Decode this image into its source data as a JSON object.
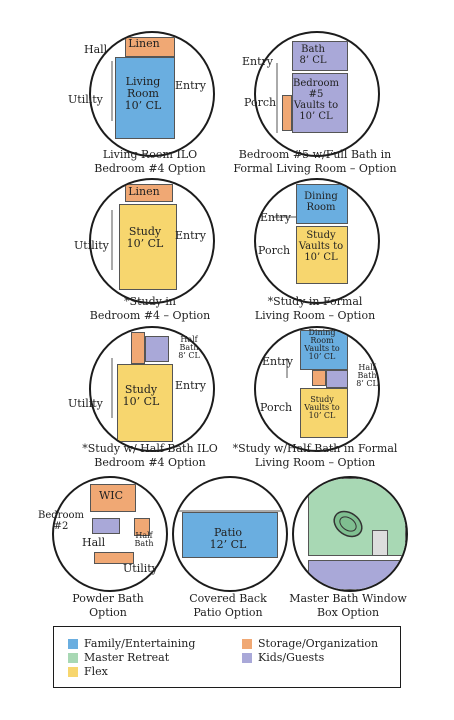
{
  "panels": [
    {
      "rooms": {
        "linen": "Linen",
        "living": "Living\nRoom\n10’ CL"
      },
      "labels": {
        "hall": "Hall",
        "entry": "Entry",
        "utility": "Utility"
      },
      "caption": [
        "Living Room ILO",
        "Bedroom #4 Option"
      ]
    },
    {
      "rooms": {
        "bath": "Bath\n8’ CL",
        "bedroom": "Bedroom\n#5\nVaults to\n10’ CL"
      },
      "labels": {
        "entry": "Entry",
        "porch": "Porch"
      },
      "caption": [
        "Bedroom #5 w/Full Bath in",
        "Formal Living Room – Option"
      ]
    },
    {
      "rooms": {
        "linen": "Linen",
        "study": "Study\n10’ CL"
      },
      "labels": {
        "utility": "Utility",
        "entry": "Entry"
      },
      "caption": [
        "*Study in",
        "Bedroom #4 – Option"
      ]
    },
    {
      "rooms": {
        "dining": "Dining\nRoom",
        "study": "Study\nVaults to\n10’ CL"
      },
      "labels": {
        "entry": "Entry",
        "porch": "Porch"
      },
      "caption": [
        "*Study in Formal",
        "Living Room – Option"
      ]
    },
    {
      "rooms": {
        "halfbath": "Half\nBath\n8’ CL",
        "study": "Study\n10’ CL"
      },
      "labels": {
        "entry": "Entry",
        "utility": "Utility"
      },
      "caption": [
        "*Study w/ Half Bath ILO",
        "Bedroom #4 Option"
      ]
    },
    {
      "rooms": {
        "dining": "Dining\nRoom\nVaults to\n10’ CL",
        "study": "Study\nVaults to\n10’ CL",
        "halfbath": "Half\nBath\n8’ CL"
      },
      "labels": {
        "entry": "Entry",
        "porch": "Porch"
      },
      "caption": [
        "*Study w/Half Bath in Formal",
        "Living Room – Option"
      ]
    },
    {
      "rooms": {
        "wic": "WIC",
        "halfbath": "Half\nBath"
      },
      "labels": {
        "bedroom": "Bedroom\n#2",
        "hall": "Hall",
        "utility": "Utility"
      },
      "caption": [
        "Powder Bath",
        "Option"
      ]
    },
    {
      "rooms": {
        "patio": "Patio\n12’ CL"
      },
      "labels": {},
      "caption": [
        "Covered Back",
        "Patio Option"
      ]
    },
    {
      "rooms": {},
      "labels": {},
      "caption": [
        "Master Bath Window",
        "Box Option"
      ]
    }
  ],
  "legend": [
    {
      "label": "Family/Entertaining",
      "color": "#6aaee0"
    },
    {
      "label": "Storage/Organization",
      "color": "#f0a874"
    },
    {
      "label": "Master Retreat",
      "color": "#a8d8b4"
    },
    {
      "label": "Kids/Guests",
      "color": "#a9a8d8"
    },
    {
      "label": "Flex",
      "color": "#f7d66e"
    }
  ]
}
